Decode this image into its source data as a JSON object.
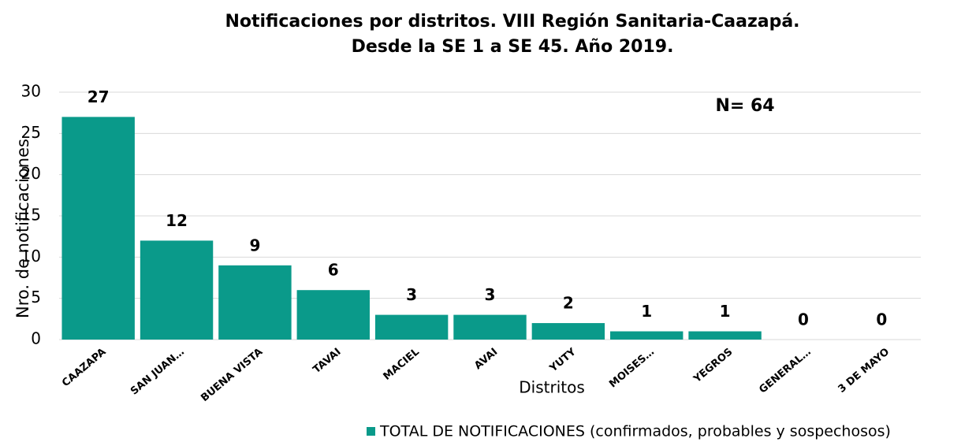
{
  "chart_data": {
    "type": "bar",
    "title": [
      "Notificaciones por distritos. VIII Región Sanitaria-Caazapá.",
      "Desde la SE 1 a SE 45. Año 2019."
    ],
    "y_label": "Nro. de notificaciones",
    "x_label": "Distritos",
    "annotation": "N= 64",
    "categories": [
      "CAAZAPA",
      "SAN JUAN…",
      "BUENA VISTA",
      "TAVAI",
      "MACIEL",
      "AVAI",
      "YUTY",
      "MOISES…",
      "YEGROS",
      "GENERAL…",
      "3 DE MAYO"
    ],
    "series": [
      {
        "name": "TOTAL DE NOTIFICACIONES (confirmados, probables y sospechosos)",
        "color": "#0a9a8a",
        "values": [
          27,
          12,
          9,
          6,
          3,
          3,
          2,
          1,
          1,
          0,
          0
        ]
      }
    ],
    "ylim": [
      0,
      30
    ],
    "yticks": [
      0,
      5,
      10,
      15,
      20,
      25,
      30
    ],
    "grid": true,
    "legend": "bottom"
  }
}
